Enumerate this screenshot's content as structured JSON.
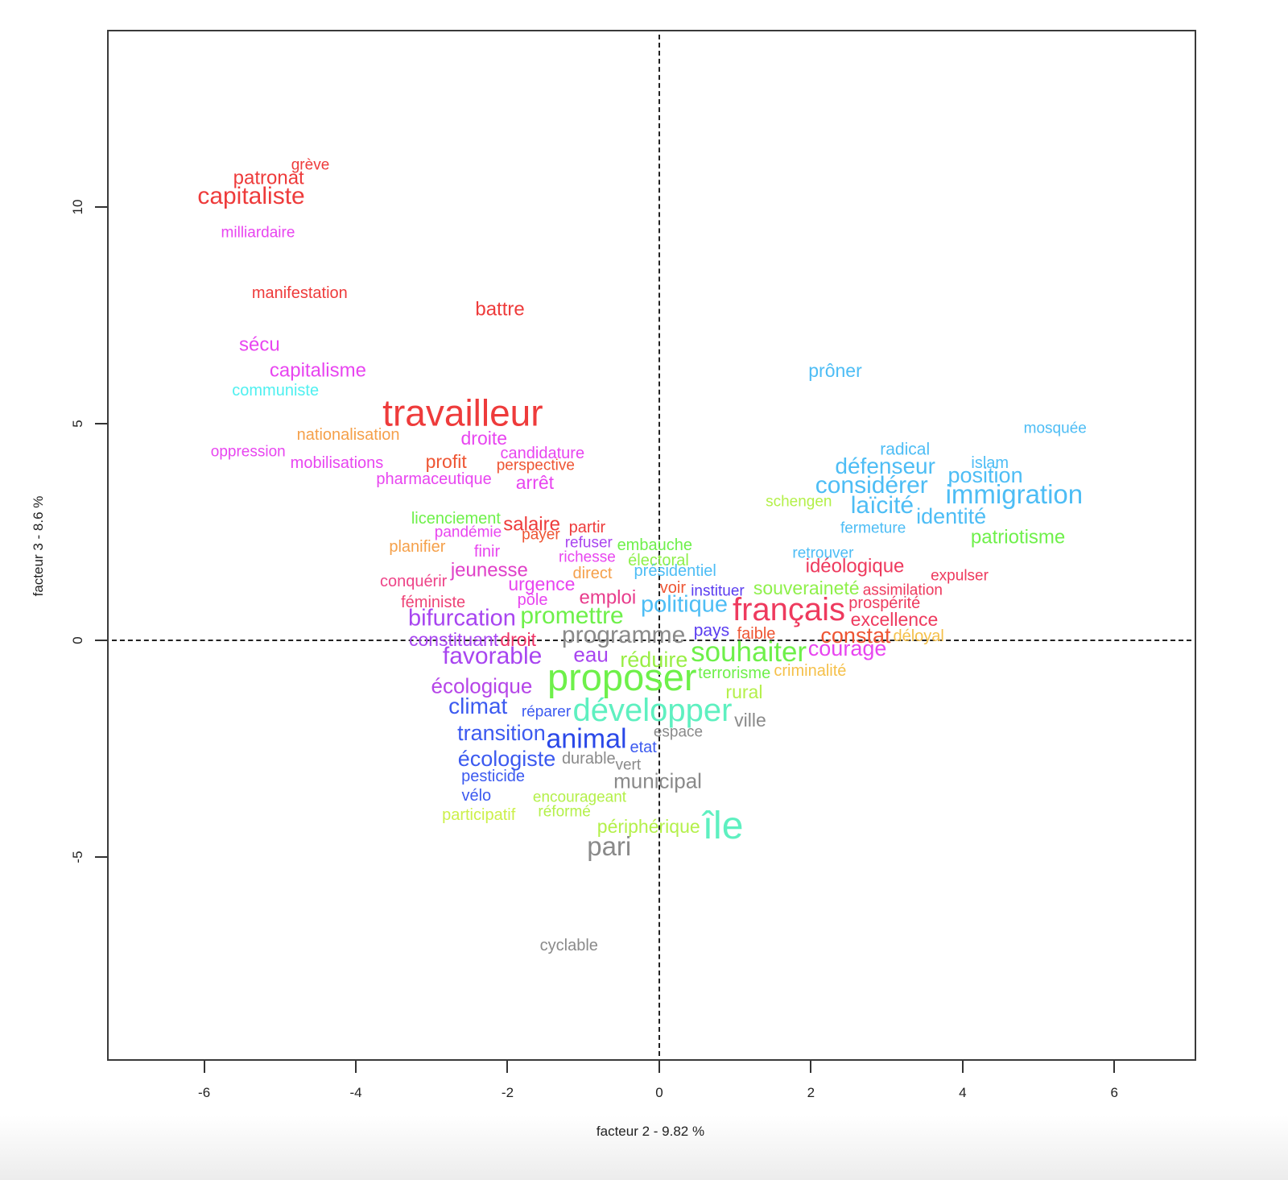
{
  "chart_data": {
    "type": "scatter",
    "subtype": "word-map (correspondence analysis)",
    "title": "",
    "xlabel": "facteur 2 - 9.82 %",
    "ylabel": "facteur 3 - 8.6 %",
    "xlim": [
      -7.28,
      7.08
    ],
    "ylim": [
      -9.7,
      14.09
    ],
    "xticks": [
      -6,
      -4,
      -2,
      0,
      2,
      4,
      6
    ],
    "yticks": [
      -5,
      0,
      5,
      10
    ],
    "grid": false,
    "reference_lines": {
      "x": 0,
      "y": 0,
      "style": "dashed"
    },
    "legend": null,
    "words": [
      {
        "text": "grève",
        "x": -4.6,
        "y": 10.93,
        "size": 19,
        "color": "#ee3b3b"
      },
      {
        "text": "patronat",
        "x": -5.15,
        "y": 10.61,
        "size": 24,
        "color": "#ee3b3b"
      },
      {
        "text": "capitaliste",
        "x": -5.38,
        "y": 10.19,
        "size": 30,
        "color": "#ee3b3b"
      },
      {
        "text": "milliardaire",
        "x": -5.29,
        "y": 9.37,
        "size": 19,
        "color": "#e845f0"
      },
      {
        "text": "manifestation",
        "x": -4.74,
        "y": 7.97,
        "size": 20,
        "color": "#ee3b3b"
      },
      {
        "text": "battre",
        "x": -2.1,
        "y": 7.58,
        "size": 24,
        "color": "#ee3b3b"
      },
      {
        "text": "sécu",
        "x": -5.27,
        "y": 6.77,
        "size": 24,
        "color": "#e845f0"
      },
      {
        "text": "capitalisme",
        "x": -4.5,
        "y": 6.17,
        "size": 24,
        "color": "#e845f0"
      },
      {
        "text": "communiste",
        "x": -5.06,
        "y": 5.72,
        "size": 20,
        "color": "#4ff0f0"
      },
      {
        "text": "travailleur",
        "x": -2.59,
        "y": 5.17,
        "size": 46,
        "color": "#ee3b3b"
      },
      {
        "text": "nationalisation",
        "x": -4.1,
        "y": 4.7,
        "size": 20,
        "color": "#f5a04a"
      },
      {
        "text": "droite",
        "x": -2.31,
        "y": 4.61,
        "size": 23,
        "color": "#e845f0"
      },
      {
        "text": "oppression",
        "x": -5.42,
        "y": 4.31,
        "size": 19,
        "color": "#e845f0"
      },
      {
        "text": "candidature",
        "x": -1.54,
        "y": 4.28,
        "size": 20,
        "color": "#e845f0"
      },
      {
        "text": "mobilisations",
        "x": -4.25,
        "y": 4.05,
        "size": 20,
        "color": "#e845f0"
      },
      {
        "text": "profit",
        "x": -2.81,
        "y": 4.07,
        "size": 23,
        "color": "#ee5533"
      },
      {
        "text": "perspective",
        "x": -1.63,
        "y": 4.0,
        "size": 19,
        "color": "#ee5533"
      },
      {
        "text": "pharmaceutique",
        "x": -2.97,
        "y": 3.68,
        "size": 20,
        "color": "#e845f0"
      },
      {
        "text": "arrêt",
        "x": -1.64,
        "y": 3.59,
        "size": 23,
        "color": "#e845f0"
      },
      {
        "text": "licenciement",
        "x": -2.68,
        "y": 2.77,
        "size": 20,
        "color": "#6ef04a"
      },
      {
        "text": "salaire",
        "x": -1.68,
        "y": 2.62,
        "size": 24,
        "color": "#ee3b3b"
      },
      {
        "text": "partir",
        "x": -0.95,
        "y": 2.57,
        "size": 20,
        "color": "#ee3b3b"
      },
      {
        "text": "pandémie",
        "x": -2.52,
        "y": 2.45,
        "size": 19,
        "color": "#e845f0"
      },
      {
        "text": "payer",
        "x": -1.56,
        "y": 2.4,
        "size": 19,
        "color": "#ee5533"
      },
      {
        "text": "refuser",
        "x": -0.93,
        "y": 2.21,
        "size": 19,
        "color": "#a845f0"
      },
      {
        "text": "embauche",
        "x": -0.06,
        "y": 2.16,
        "size": 20,
        "color": "#6ef04a"
      },
      {
        "text": "planifier",
        "x": -3.19,
        "y": 2.12,
        "size": 20,
        "color": "#f5a04a"
      },
      {
        "text": "finir",
        "x": -2.27,
        "y": 2.01,
        "size": 20,
        "color": "#e845f0"
      },
      {
        "text": "richesse",
        "x": -0.95,
        "y": 1.88,
        "size": 19,
        "color": "#e845f0"
      },
      {
        "text": "électoral",
        "x": -0.01,
        "y": 1.8,
        "size": 20,
        "color": "#8ef04a"
      },
      {
        "text": "présidentiel",
        "x": 0.21,
        "y": 1.56,
        "size": 20,
        "color": "#4dbdf5"
      },
      {
        "text": "direct",
        "x": -0.88,
        "y": 1.51,
        "size": 20,
        "color": "#f5a04a"
      },
      {
        "text": "jeunesse",
        "x": -2.24,
        "y": 1.56,
        "size": 24,
        "color": "#e040c8"
      },
      {
        "text": "conquérir",
        "x": -3.24,
        "y": 1.32,
        "size": 20,
        "color": "#ee4488"
      },
      {
        "text": "urgence",
        "x": -1.55,
        "y": 1.25,
        "size": 23,
        "color": "#e845f0"
      },
      {
        "text": "voir",
        "x": 0.18,
        "y": 1.17,
        "size": 20,
        "color": "#ee5533"
      },
      {
        "text": "instituer",
        "x": 0.77,
        "y": 1.1,
        "size": 19,
        "color": "#5a3cf0"
      },
      {
        "text": "souveraineté",
        "x": 1.94,
        "y": 1.15,
        "size": 23,
        "color": "#8ef04a"
      },
      {
        "text": "idéologique",
        "x": 2.58,
        "y": 1.65,
        "size": 24,
        "color": "#ee3a5e"
      },
      {
        "text": "retrouver",
        "x": 2.16,
        "y": 1.97,
        "size": 19,
        "color": "#4dbdf5"
      },
      {
        "text": "expulser",
        "x": 3.96,
        "y": 1.45,
        "size": 19,
        "color": "#ee3a5e"
      },
      {
        "text": "assimilation",
        "x": 3.21,
        "y": 1.12,
        "size": 19,
        "color": "#ee3a5e"
      },
      {
        "text": "féministe",
        "x": -2.98,
        "y": 0.84,
        "size": 20,
        "color": "#ee4477"
      },
      {
        "text": "pôle",
        "x": -1.67,
        "y": 0.89,
        "size": 20,
        "color": "#e845f0"
      },
      {
        "text": "emploi",
        "x": -0.68,
        "y": 0.93,
        "size": 24,
        "color": "#e83c8c"
      },
      {
        "text": "politique",
        "x": 0.33,
        "y": 0.76,
        "size": 29,
        "color": "#4dbdf5"
      },
      {
        "text": "français",
        "x": 1.71,
        "y": 0.63,
        "size": 40,
        "color": "#ee3a5e"
      },
      {
        "text": "prospérité",
        "x": 2.97,
        "y": 0.82,
        "size": 20,
        "color": "#ee3a5e"
      },
      {
        "text": "bifurcation",
        "x": -2.6,
        "y": 0.45,
        "size": 29,
        "color": "#a845f0"
      },
      {
        "text": "promettre",
        "x": -1.15,
        "y": 0.5,
        "size": 30,
        "color": "#6ef04a"
      },
      {
        "text": "excellence",
        "x": 3.1,
        "y": 0.43,
        "size": 23,
        "color": "#ee3a5e"
      },
      {
        "text": "constituant",
        "x": -2.71,
        "y": -0.04,
        "size": 23,
        "color": "#a845f0"
      },
      {
        "text": "droit",
        "x": -1.86,
        "y": -0.04,
        "size": 23,
        "color": "#ee3366"
      },
      {
        "text": "programme",
        "x": -0.47,
        "y": 0.06,
        "size": 30,
        "color": "#8a8a8a"
      },
      {
        "text": "pays",
        "x": 0.69,
        "y": 0.19,
        "size": 21,
        "color": "#5a3cf0"
      },
      {
        "text": "faible",
        "x": 1.28,
        "y": 0.11,
        "size": 20,
        "color": "#ee5533"
      },
      {
        "text": "constat",
        "x": 2.59,
        "y": 0.06,
        "size": 27,
        "color": "#ee5533"
      },
      {
        "text": "déloyal",
        "x": 3.42,
        "y": 0.06,
        "size": 20,
        "color": "#f5c04a"
      },
      {
        "text": "favorable",
        "x": -2.2,
        "y": -0.43,
        "size": 30,
        "color": "#a845f0"
      },
      {
        "text": "eau",
        "x": -0.9,
        "y": -0.37,
        "size": 26,
        "color": "#a845f0"
      },
      {
        "text": "réduire",
        "x": -0.07,
        "y": -0.5,
        "size": 27,
        "color": "#99ee44"
      },
      {
        "text": "souhaiter",
        "x": 1.18,
        "y": -0.33,
        "size": 35,
        "color": "#6ef04a"
      },
      {
        "text": "courage",
        "x": 2.48,
        "y": -0.24,
        "size": 27,
        "color": "#e845f0"
      },
      {
        "text": "proposer",
        "x": -0.49,
        "y": -0.93,
        "size": 47,
        "color": "#6ef04a"
      },
      {
        "text": "terrorisme",
        "x": 0.99,
        "y": -0.8,
        "size": 20,
        "color": "#6ef04a"
      },
      {
        "text": "criminalité",
        "x": 1.99,
        "y": -0.74,
        "size": 20,
        "color": "#f5c04a"
      },
      {
        "text": "écologique",
        "x": -2.34,
        "y": -1.1,
        "size": 26,
        "color": "#b545e8"
      },
      {
        "text": "rural",
        "x": 1.12,
        "y": -1.25,
        "size": 23,
        "color": "#b4f04a"
      },
      {
        "text": "climat",
        "x": -2.39,
        "y": -1.58,
        "size": 28,
        "color": "#3c5af0"
      },
      {
        "text": "réparer",
        "x": -1.49,
        "y": -1.69,
        "size": 19,
        "color": "#3c5af0"
      },
      {
        "text": "développer",
        "x": -0.09,
        "y": -1.69,
        "size": 40,
        "color": "#5ef0c0"
      },
      {
        "text": "ville",
        "x": 1.2,
        "y": -1.9,
        "size": 23,
        "color": "#8a8a8a"
      },
      {
        "text": "transition",
        "x": -2.08,
        "y": -2.19,
        "size": 27,
        "color": "#3c5af0"
      },
      {
        "text": "espace",
        "x": 0.25,
        "y": -2.16,
        "size": 19,
        "color": "#8a8a8a"
      },
      {
        "text": "animal",
        "x": -0.96,
        "y": -2.34,
        "size": 34,
        "color": "#2a48e8"
      },
      {
        "text": "etat",
        "x": -0.21,
        "y": -2.51,
        "size": 20,
        "color": "#3c5af0"
      },
      {
        "text": "écologiste",
        "x": -2.01,
        "y": -2.79,
        "size": 27,
        "color": "#3c5af0"
      },
      {
        "text": "durable",
        "x": -0.93,
        "y": -2.77,
        "size": 20,
        "color": "#8a8a8a"
      },
      {
        "text": "vert",
        "x": -0.41,
        "y": -2.92,
        "size": 19,
        "color": "#8a8a8a"
      },
      {
        "text": "municipal",
        "x": -0.02,
        "y": -3.29,
        "size": 26,
        "color": "#8a8a8a"
      },
      {
        "text": "pesticide",
        "x": -2.19,
        "y": -3.18,
        "size": 20,
        "color": "#3c5af0"
      },
      {
        "text": "vélo",
        "x": -2.41,
        "y": -3.62,
        "size": 20,
        "color": "#3c5af0"
      },
      {
        "text": "encourageant",
        "x": -1.05,
        "y": -3.66,
        "size": 19,
        "color": "#b4f04a"
      },
      {
        "text": "participatif",
        "x": -2.38,
        "y": -4.07,
        "size": 20,
        "color": "#ccf04a"
      },
      {
        "text": "réformé",
        "x": -1.25,
        "y": -4.0,
        "size": 19,
        "color": "#b4f04a"
      },
      {
        "text": "périphérique",
        "x": -0.14,
        "y": -4.35,
        "size": 23,
        "color": "#b4f04a"
      },
      {
        "text": "île",
        "x": 0.84,
        "y": -4.39,
        "size": 48,
        "color": "#5ef0c0"
      },
      {
        "text": "pari",
        "x": -0.66,
        "y": -4.81,
        "size": 33,
        "color": "#8a8a8a"
      },
      {
        "text": "cyclable",
        "x": -1.19,
        "y": -7.08,
        "size": 20,
        "color": "#8a8a8a"
      },
      {
        "text": "prôner",
        "x": 2.32,
        "y": 6.17,
        "size": 23,
        "color": "#4dbdf5"
      },
      {
        "text": "mosquée",
        "x": 5.22,
        "y": 4.85,
        "size": 19,
        "color": "#4dbdf5"
      },
      {
        "text": "radical",
        "x": 3.24,
        "y": 4.37,
        "size": 21,
        "color": "#4dbdf5"
      },
      {
        "text": "défenseur",
        "x": 2.98,
        "y": 3.96,
        "size": 28,
        "color": "#4dbdf5"
      },
      {
        "text": "islam",
        "x": 4.36,
        "y": 4.05,
        "size": 20,
        "color": "#4dbdf5"
      },
      {
        "text": "position",
        "x": 4.3,
        "y": 3.75,
        "size": 27,
        "color": "#4dbdf5"
      },
      {
        "text": "considérer",
        "x": 2.8,
        "y": 3.51,
        "size": 30,
        "color": "#4dbdf5"
      },
      {
        "text": "immigration",
        "x": 4.68,
        "y": 3.31,
        "size": 33,
        "color": "#4dbdf5"
      },
      {
        "text": "schengen",
        "x": 1.84,
        "y": 3.16,
        "size": 19,
        "color": "#b4f04a"
      },
      {
        "text": "laïcité",
        "x": 2.94,
        "y": 3.05,
        "size": 30,
        "color": "#4dbdf5"
      },
      {
        "text": "identité",
        "x": 3.85,
        "y": 2.81,
        "size": 27,
        "color": "#4dbdf5"
      },
      {
        "text": "fermeture",
        "x": 2.82,
        "y": 2.55,
        "size": 19,
        "color": "#4dbdf5"
      },
      {
        "text": "patriotisme",
        "x": 4.73,
        "y": 2.32,
        "size": 24,
        "color": "#6ef04a"
      }
    ]
  },
  "axes": {
    "xlabel": "facteur 2 - 9.82 %",
    "ylabel": "facteur 3 - 8.6 %"
  }
}
